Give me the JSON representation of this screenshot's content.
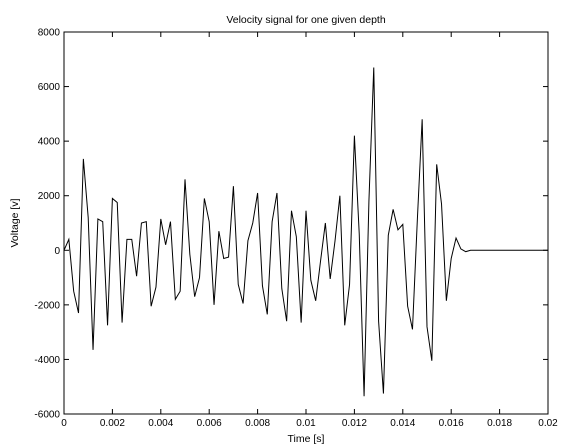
{
  "chart_data": {
    "type": "line",
    "title": "Velocity signal for one given depth",
    "xlabel": "Time [s]",
    "ylabel": "Voltage [v]",
    "xlim": [
      0,
      0.02
    ],
    "ylim": [
      -6000,
      8000
    ],
    "grid": false,
    "line_color": "#000000",
    "x_ticks": [
      0,
      0.002,
      0.004,
      0.006,
      0.008,
      0.01,
      0.012,
      0.014,
      0.016,
      0.018,
      0.02
    ],
    "x_tick_labels": [
      "0",
      "0.002",
      "0.004",
      "0.006",
      "0.008",
      "0.01",
      "0.012",
      "0.014",
      "0.016",
      "0.018",
      "0.02"
    ],
    "y_ticks": [
      -6000,
      -4000,
      -2000,
      0,
      2000,
      4000,
      6000,
      8000
    ],
    "y_tick_labels": [
      "-6000",
      "-4000",
      "-2000",
      "0",
      "2000",
      "4000",
      "6000",
      "8000"
    ],
    "series": [
      {
        "x": [
          0,
          0.0002,
          0.0004,
          0.0006,
          0.0008,
          0.001,
          0.0012,
          0.0014,
          0.0016,
          0.0018,
          0.002,
          0.0022,
          0.0024,
          0.0026,
          0.0028,
          0.003,
          0.0032,
          0.0034,
          0.0036,
          0.0038,
          0.004,
          0.0042,
          0.0044,
          0.0046,
          0.0048,
          0.005,
          0.0052,
          0.0054,
          0.0056,
          0.0058,
          0.006,
          0.0062,
          0.0064,
          0.0066,
          0.0068,
          0.007,
          0.0072,
          0.0074,
          0.0076,
          0.0078,
          0.008,
          0.0082,
          0.0084,
          0.0086,
          0.0088,
          0.009,
          0.0092,
          0.0094,
          0.0096,
          0.0098,
          0.01,
          0.0102,
          0.0104,
          0.0106,
          0.0108,
          0.011,
          0.0112,
          0.0114,
          0.0116,
          0.0118,
          0.012,
          0.0122,
          0.0124,
          0.0126,
          0.0128,
          0.013,
          0.0132,
          0.0134,
          0.0136,
          0.0138,
          0.014,
          0.0142,
          0.0144,
          0.0146,
          0.0148,
          0.015,
          0.0152,
          0.0154,
          0.0156,
          0.0158,
          0.016,
          0.0162,
          0.0164,
          0.0166,
          0.0168,
          0.017,
          0.0172,
          0.0174,
          0.0176,
          0.0178,
          0.018,
          0.0182,
          0.0184,
          0.0186,
          0.0188,
          0.019,
          0.0192,
          0.0194,
          0.0196,
          0.0198,
          0.02
        ],
        "y": [
          0,
          400,
          -1500,
          -2300,
          3350,
          1200,
          -3650,
          1150,
          1050,
          -2750,
          1900,
          1750,
          -2650,
          400,
          400,
          -950,
          1000,
          1050,
          -2050,
          -1350,
          1150,
          200,
          1050,
          -1800,
          -1500,
          2600,
          -150,
          -1700,
          -1000,
          1900,
          1050,
          -2000,
          700,
          -300,
          -250,
          2350,
          -1250,
          -1950,
          350,
          1000,
          2100,
          -1300,
          -2350,
          1050,
          2100,
          -1400,
          -2600,
          1450,
          500,
          -2650,
          1450,
          -1100,
          -1850,
          -400,
          1000,
          -1050,
          350,
          2000,
          -2750,
          -1250,
          4200,
          600,
          -5350,
          1800,
          6700,
          -2600,
          -5250,
          550,
          1500,
          750,
          950,
          -2050,
          -2900,
          1100,
          4800,
          -2800,
          -4050,
          3150,
          1700,
          -1850,
          -300,
          450,
          50,
          -50,
          0,
          0,
          0,
          0,
          0,
          0,
          0,
          0,
          0,
          0,
          0,
          0,
          0,
          0,
          0,
          0,
          0
        ]
      }
    ]
  }
}
